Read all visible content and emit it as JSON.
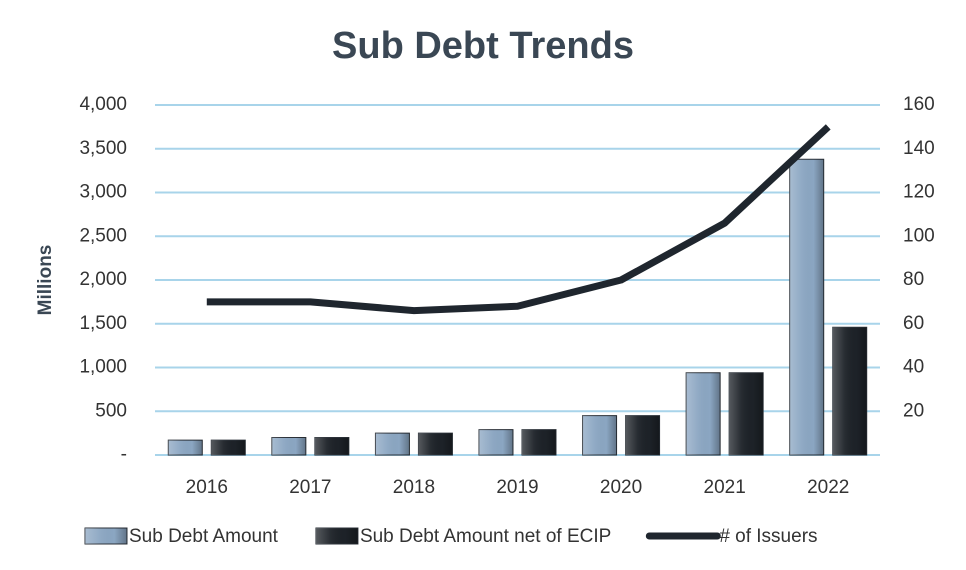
{
  "chart_data": {
    "type": "bar-line",
    "title": "Sub Debt Trends",
    "y_label": "Millions",
    "categories": [
      "2016",
      "2017",
      "2018",
      "2019",
      "2020",
      "2021",
      "2022"
    ],
    "series": [
      {
        "name": "Sub Debt Amount",
        "type": "bar",
        "color": "#8ba6c2",
        "values": [
          170,
          200,
          250,
          290,
          450,
          940,
          3380
        ]
      },
      {
        "name": "Sub Debt Amount net of ECIP",
        "type": "bar",
        "color": "#1d2228",
        "values": [
          170,
          200,
          250,
          290,
          450,
          940,
          1460
        ]
      },
      {
        "name": "# of Issuers",
        "type": "line",
        "axis": "y2",
        "color": "#1f262e",
        "values": [
          70,
          70,
          66,
          68,
          80,
          106,
          150
        ]
      }
    ],
    "ylim": [
      0,
      4000
    ],
    "yticks": [
      {
        "value": 0,
        "label": "-"
      },
      500,
      {
        "value": 1000,
        "label": "1,000"
      },
      {
        "value": 1500,
        "label": "1,500"
      },
      {
        "value": 2000,
        "label": "2,000"
      },
      {
        "value": 2500,
        "label": "2,500"
      },
      {
        "value": 3000,
        "label": "3,000"
      },
      {
        "value": 3500,
        "label": "3,500"
      },
      {
        "value": 4000,
        "label": "4,000"
      }
    ],
    "y2lim": [
      0,
      160
    ],
    "y2ticks": [
      20,
      40,
      60,
      80,
      100,
      120,
      140,
      160
    ],
    "grid": true,
    "grid_color": "#a8d4ea",
    "legend": "bottom"
  }
}
